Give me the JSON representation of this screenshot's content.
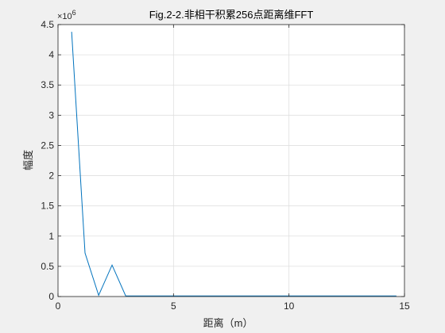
{
  "chart_data": {
    "type": "line",
    "title": "Fig.2-2.非相干积累256点距离维FFT",
    "xlabel": "距离（m）",
    "ylabel": "幅度",
    "xlim": [
      0,
      15
    ],
    "ylim": [
      0,
      4.5
    ],
    "y_exponent_label": "×10",
    "y_exponent_power": "6",
    "grid": true,
    "x_ticks": [
      "0",
      "5",
      "10",
      "15"
    ],
    "x_tick_values": [
      0,
      5,
      10,
      15
    ],
    "y_ticks": [
      "0",
      "0.5",
      "1",
      "1.5",
      "2",
      "2.5",
      "3",
      "3.5",
      "4",
      "4.5"
    ],
    "y_tick_values": [
      0,
      0.5,
      1,
      1.5,
      2,
      2.5,
      3,
      3.5,
      4,
      4.5
    ],
    "series": [
      {
        "color": "#0072bd",
        "x": [
          0.59,
          1.17,
          1.76,
          2.34,
          2.93,
          3.52,
          4.1,
          4.69,
          5.27,
          5.86,
          6.45,
          7.03,
          7.62,
          8.2,
          8.79,
          9.38,
          9.96,
          10.55,
          11.13,
          11.72,
          12.3,
          12.89,
          13.48,
          14.06,
          14.65
        ],
        "y": [
          4.38,
          0.72,
          0.02,
          0.52,
          0.01,
          0.01,
          0.01,
          0.01,
          0.01,
          0.01,
          0.01,
          0.01,
          0.01,
          0.01,
          0.01,
          0.01,
          0.01,
          0.01,
          0.01,
          0.01,
          0.01,
          0.01,
          0.01,
          0.01,
          0.01
        ]
      }
    ]
  }
}
